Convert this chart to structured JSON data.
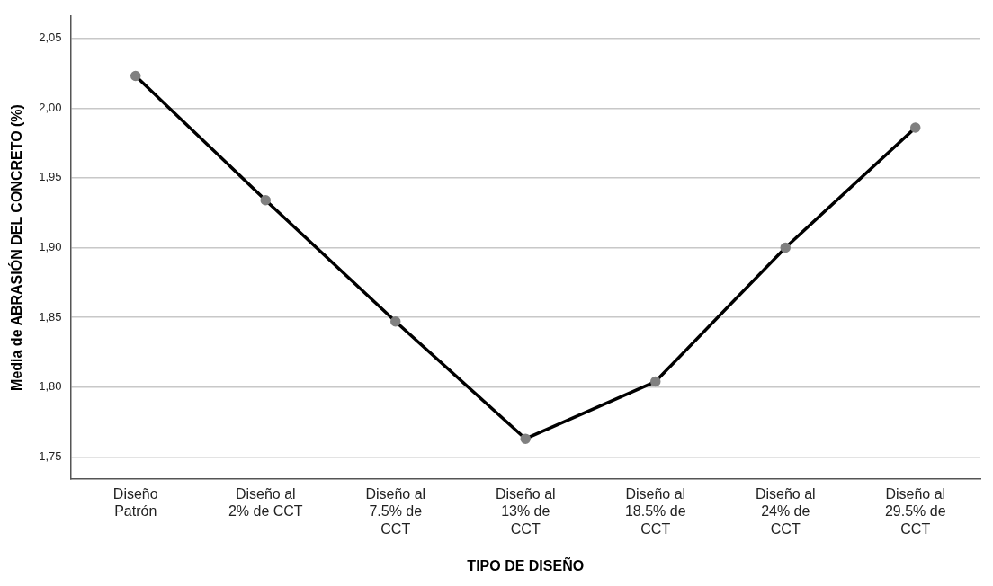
{
  "chart_data": {
    "type": "line",
    "xlabel": "TIPO DE DISEÑO",
    "ylabel": "Media de ABRASIÓN DEL CONCRETO (%)",
    "categories": [
      "Diseño Patrón",
      "Diseño al 2% de CCT",
      "Diseño al 7.5% de CCT",
      "Diseño al 13% de CCT",
      "Diseño al 18.5% de CCT",
      "Diseño al 24% de CCT",
      "Diseño al 29.5% de CCT"
    ],
    "series": [
      {
        "color": "#000000",
        "values": [
          2.023,
          1.934,
          1.847,
          1.763,
          1.804,
          1.9,
          1.986
        ]
      }
    ],
    "marker": "circle",
    "ylim": [
      1.734,
      2.066
    ],
    "yticks": [
      {
        "value": 1.75,
        "label": "1,75"
      },
      {
        "value": 1.8,
        "label": "1,80"
      },
      {
        "value": 1.85,
        "label": "1,85"
      },
      {
        "value": 1.9,
        "label": "1,90"
      },
      {
        "value": 1.95,
        "label": "1,95"
      },
      {
        "value": 2.0,
        "label": "2,00"
      },
      {
        "value": 2.05,
        "label": "2,05"
      }
    ],
    "grid": "y",
    "legend": false
  }
}
